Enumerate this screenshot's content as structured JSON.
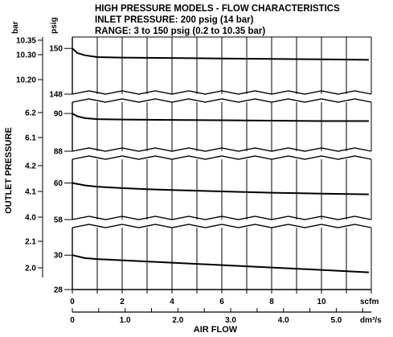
{
  "chart_data": {
    "type": "line",
    "title": "HIGH PRESSURE MODELS - FLOW CHARACTERISTICS",
    "subtitle_lines": [
      "INLET PRESSURE: 200 psig (14 bar)",
      "RANGE: 3 to 150 psig (0.2 to 10.35 bar)"
    ],
    "ylabel": "OUTLET PRESSURE",
    "xlabel": "AIR FLOW",
    "y_unit_bar": "bar",
    "y_unit_psig": "psig",
    "x_unit_scfm": "scfm",
    "x_unit_dm3s": "dm³/s",
    "x_scfm_ticks": [
      "0",
      "2",
      "4",
      "6",
      "8",
      "10"
    ],
    "x_dm3s_ticks": [
      "0",
      "1.0",
      "2.0",
      "3.0",
      "4.0",
      "5.0"
    ],
    "xlim_scfm": [
      0,
      12
    ],
    "panels": [
      {
        "psig_ticks": [
          "150",
          "148"
        ],
        "bar_ticks": [
          "10.35",
          "10.30",
          "10.20"
        ],
        "ylim_psig": [
          148,
          150.5
        ],
        "x_scfm": [
          0,
          0.2,
          0.5,
          1,
          2,
          4,
          6,
          8,
          10,
          11.9
        ],
        "y_psig": [
          150.0,
          149.8,
          149.7,
          149.62,
          149.6,
          149.58,
          149.56,
          149.54,
          149.52,
          149.5
        ]
      },
      {
        "psig_ticks": [
          "90",
          "88"
        ],
        "bar_ticks": [
          "6.2",
          "6.1"
        ],
        "ylim_psig": [
          88,
          90.6
        ],
        "x_scfm": [
          0,
          0.2,
          0.5,
          1,
          2,
          4,
          6,
          8,
          10,
          11.9
        ],
        "y_psig": [
          90.0,
          89.85,
          89.75,
          89.7,
          89.68,
          89.66,
          89.64,
          89.62,
          89.6,
          89.6
        ]
      },
      {
        "psig_ticks": [
          "60",
          "58"
        ],
        "bar_ticks": [
          "4.2",
          "4.1",
          "4.0"
        ],
        "ylim_psig": [
          58,
          61.3
        ],
        "x_scfm": [
          0,
          0.5,
          1,
          2,
          3,
          4,
          6,
          8,
          10,
          11.9
        ],
        "y_psig": [
          60.0,
          59.87,
          59.8,
          59.72,
          59.66,
          59.62,
          59.54,
          59.47,
          59.42,
          59.38
        ]
      },
      {
        "psig_ticks": [
          "30",
          "28"
        ],
        "bar_ticks": [
          "2.1",
          "2.0"
        ],
        "ylim_psig": [
          28,
          31.6
        ],
        "x_scfm": [
          0,
          0.5,
          1,
          2,
          4,
          6,
          8,
          10,
          11.9
        ],
        "y_psig": [
          30.0,
          29.83,
          29.77,
          29.7,
          29.56,
          29.42,
          29.28,
          29.14,
          29.0
        ]
      }
    ]
  }
}
